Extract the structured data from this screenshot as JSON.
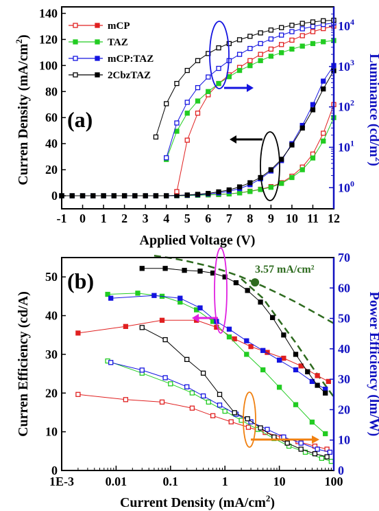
{
  "colors": {
    "mCP": "#e02020",
    "TAZ": "#22cc22",
    "mCP:TAZ": "#1414e0",
    "2CbzTAZ": "#000000",
    "right_axis": "#1010c0",
    "fit": "#2e6b1f",
    "magenta": "#e020e0",
    "orange": "#f08010"
  },
  "chart_data": [
    {
      "panel": "(a)",
      "type": "line",
      "xlabel": "Applied Voltage (V)",
      "ylabel": "Curren Density (mA/cm",
      "ylabel_sup": "2",
      "ylabel_end": ")",
      "y2label": "Luminance (cd/m",
      "y2label_sup": "2",
      "y2label_end": ")",
      "xlim": [
        -1,
        12
      ],
      "ylim": [
        -10,
        145
      ],
      "y2lim_log": [
        0.3,
        30000
      ],
      "y2scale": "log",
      "xticks": [
        "-1",
        "0",
        "1",
        "2",
        "3",
        "4",
        "5",
        "6",
        "7",
        "8",
        "9",
        "10",
        "11",
        "12"
      ],
      "yticks": [
        "0",
        "20",
        "40",
        "60",
        "80",
        "100",
        "120",
        "140"
      ],
      "y2ticks": [
        {
          "base": "10",
          "exp": "0",
          "v": 1
        },
        {
          "base": "10",
          "exp": "1",
          "v": 10
        },
        {
          "base": "10",
          "exp": "2",
          "v": 100
        },
        {
          "base": "10",
          "exp": "3",
          "v": 1000
        },
        {
          "base": "10",
          "exp": "4",
          "v": 10000
        }
      ],
      "legend": [
        "mCP",
        "TAZ",
        "mCP:TAZ",
        "2CbzTAZ"
      ],
      "current_density": [
        {
          "name": "mCP",
          "x": [
            -1,
            -0.5,
            0,
            0.5,
            1,
            1.5,
            2,
            2.5,
            3,
            3.5,
            4,
            4.5,
            5,
            5.5,
            6,
            6.5,
            7,
            7.5,
            8,
            8.5,
            9,
            9.5,
            10,
            10.5,
            11,
            11.5,
            12
          ],
          "y": [
            0,
            0,
            0,
            0,
            0,
            0,
            0,
            0,
            0,
            0,
            0,
            0,
            0.2,
            0.4,
            0.7,
            1,
            1.5,
            2.3,
            3.5,
            5,
            7,
            10,
            15,
            22,
            32,
            48,
            70
          ]
        },
        {
          "name": "TAZ",
          "x": [
            -1,
            -0.5,
            0,
            0.5,
            1,
            1.5,
            2,
            2.5,
            3,
            3.5,
            4,
            4.5,
            5,
            5.5,
            6,
            6.5,
            7,
            7.5,
            8,
            8.5,
            9,
            9.5,
            10,
            10.5,
            11,
            11.5,
            12
          ],
          "y": [
            0,
            0,
            0,
            0,
            0,
            0,
            0,
            0,
            0,
            0,
            0,
            0,
            0.2,
            0.4,
            0.7,
            1,
            1.4,
            2.2,
            3.3,
            4.8,
            6.5,
            9.5,
            14,
            20,
            29,
            42,
            60
          ]
        },
        {
          "name": "mCP:TAZ",
          "x": [
            -1,
            -0.5,
            0,
            0.5,
            1,
            1.5,
            2,
            2.5,
            3,
            3.5,
            4,
            4.5,
            5,
            5.5,
            6,
            6.5,
            7,
            7.5,
            8,
            8.5,
            9,
            9.5,
            10,
            10.5,
            11,
            11.5,
            12
          ],
          "y": [
            0,
            0,
            0,
            0,
            0,
            0,
            0,
            0,
            0,
            0,
            0,
            0.2,
            0.4,
            0.8,
            1.4,
            2.2,
            3.5,
            5.5,
            8.5,
            13,
            19,
            27,
            40,
            54,
            70,
            88,
            100
          ]
        },
        {
          "name": "2CbzTAZ",
          "x": [
            -1,
            -0.5,
            0,
            0.5,
            1,
            1.5,
            2,
            2.5,
            3,
            3.5,
            4,
            4.5,
            5,
            5.5,
            6,
            6.5,
            7,
            7.5,
            8,
            8.5,
            9,
            9.5,
            10,
            10.5,
            11,
            11.5,
            12
          ],
          "y": [
            0,
            0,
            0,
            0,
            0,
            0,
            0,
            0,
            0,
            0,
            0,
            0.3,
            0.6,
            1.1,
            1.8,
            3,
            4.5,
            6.8,
            10,
            14,
            20,
            28,
            39,
            52,
            66,
            82,
            96
          ]
        }
      ],
      "luminance": [
        {
          "name": "mCP",
          "x": [
            4.5,
            5,
            5.5,
            6,
            6.5,
            7,
            7.5,
            8,
            8.5,
            9,
            9.5,
            10,
            10.5,
            11,
            11.5,
            12
          ],
          "y": [
            0.8,
            15,
            70,
            200,
            380,
            620,
            950,
            1400,
            2000,
            2700,
            3500,
            4500,
            5800,
            7300,
            8700,
            10000
          ]
        },
        {
          "name": "TAZ",
          "x": [
            4,
            4.5,
            5,
            5.5,
            6,
            6.5,
            7,
            7.5,
            8,
            8.5,
            9,
            9.5,
            10,
            10.5,
            11,
            11.5,
            12
          ],
          "y": [
            5,
            25,
            70,
            140,
            240,
            380,
            560,
            800,
            1050,
            1400,
            1800,
            2200,
            2700,
            3200,
            3700,
            4100,
            4400
          ]
        },
        {
          "name": "mCP:TAZ",
          "x": [
            4,
            4.5,
            5,
            5.5,
            6,
            6.5,
            7,
            7.5,
            8,
            8.5,
            9,
            9.5,
            10,
            10.5,
            11,
            11.5,
            12
          ],
          "y": [
            5.5,
            40,
            130,
            300,
            550,
            900,
            1400,
            2000,
            2800,
            3700,
            4800,
            6000,
            7300,
            8600,
            9800,
            11000,
            12000
          ]
        },
        {
          "name": "2CbzTAZ",
          "x": [
            3.5,
            4,
            4.5,
            5,
            5.5,
            6,
            6.5,
            7,
            7.5,
            8,
            8.5,
            9,
            9.5,
            10,
            10.5,
            11,
            11.5,
            12
          ],
          "y": [
            18,
            120,
            380,
            800,
            1400,
            2100,
            2900,
            3700,
            4600,
            5600,
            6800,
            8000,
            9200,
            10500,
            11700,
            12700,
            13600,
            14000
          ]
        }
      ]
    },
    {
      "panel": "(b)",
      "type": "line",
      "xlabel": "Current Density (mA/cm",
      "xlabel_sup": "2",
      "xlabel_end": ")",
      "ylabel": "Curren Efficiency (cd/A)",
      "y2label": "Power Efficiency (lm/W)",
      "xscale": "log",
      "xlim_log": [
        0.001,
        100
      ],
      "ylim": [
        0,
        55
      ],
      "y2lim": [
        0,
        70
      ],
      "xticks": [
        {
          "label": "1E-3",
          "v": 0.001
        },
        {
          "label": "0.01",
          "v": 0.01
        },
        {
          "label": "0.1",
          "v": 0.1
        },
        {
          "label": "1",
          "v": 1
        },
        {
          "label": "10",
          "v": 10
        },
        {
          "label": "100",
          "v": 100
        }
      ],
      "yticks": [
        "0",
        "10",
        "20",
        "30",
        "40",
        "50"
      ],
      "y2ticks": [
        "0",
        "10",
        "20",
        "30",
        "40",
        "50",
        "60",
        "70"
      ],
      "annotation": "3.57 mA/cm²",
      "annotation_x": 3.57,
      "current_efficiency": [
        {
          "name": "mCP",
          "x": [
            0.002,
            0.015,
            0.07,
            0.3,
            0.7,
            1.5,
            3,
            6,
            12,
            25,
            50,
            80
          ],
          "y": [
            35.5,
            37.2,
            38.8,
            38.8,
            37,
            34,
            32,
            30.5,
            29,
            27,
            24.5,
            23
          ]
        },
        {
          "name": "TAZ",
          "x": [
            0.007,
            0.025,
            0.07,
            0.15,
            0.3,
            0.6,
            1.2,
            2.5,
            5,
            10,
            20,
            40,
            70
          ],
          "y": [
            45.5,
            45.8,
            45,
            43.5,
            41.5,
            38.5,
            34.5,
            30,
            26,
            21.5,
            17,
            12.5,
            9.5
          ]
        },
        {
          "name": "mCP:TAZ",
          "x": [
            0.008,
            0.05,
            0.15,
            0.35,
            0.7,
            1.2,
            2.5,
            5,
            10,
            20,
            40,
            70
          ],
          "y": [
            44.5,
            45.2,
            44.5,
            42,
            38.5,
            36.5,
            33.5,
            31,
            28.5,
            26,
            23,
            21
          ]
        },
        {
          "name": "2CbzTAZ",
          "x": [
            0.03,
            0.08,
            0.18,
            0.35,
            0.6,
            1,
            1.6,
            2.6,
            4.5,
            7.5,
            12,
            20,
            33,
            50,
            70
          ],
          "y": [
            52.2,
            52.2,
            51.7,
            51.5,
            51,
            50,
            48.5,
            46.5,
            43.5,
            39.5,
            35,
            30,
            25.5,
            22,
            20
          ]
        }
      ],
      "power_efficiency": [
        {
          "name": "mCP",
          "x": [
            0.002,
            0.015,
            0.07,
            0.25,
            0.6,
            1.3,
            2.7,
            5.5,
            11,
            22,
            45,
            75
          ],
          "y": [
            25,
            23.3,
            22.5,
            20.5,
            18,
            16,
            14.2,
            12.5,
            11,
            9.5,
            8,
            7
          ]
        },
        {
          "name": "TAZ",
          "x": [
            0.007,
            0.03,
            0.1,
            0.25,
            0.5,
            1,
            2,
            4,
            8,
            15,
            30,
            60,
            90
          ],
          "y": [
            36,
            32,
            28.5,
            25.5,
            22.5,
            19.5,
            16.5,
            13.5,
            10.5,
            8,
            6,
            4,
            3
          ]
        },
        {
          "name": "mCP:TAZ",
          "x": [
            0.008,
            0.03,
            0.08,
            0.2,
            0.4,
            0.8,
            1.6,
            3,
            6,
            12,
            25,
            50,
            85
          ],
          "y": [
            35.5,
            33,
            30.5,
            27.5,
            24.5,
            21.5,
            18.5,
            16,
            13.5,
            11,
            9,
            7,
            6
          ]
        },
        {
          "name": "2CbzTAZ",
          "x": [
            0.03,
            0.08,
            0.2,
            0.4,
            0.8,
            1.5,
            2.6,
            4.5,
            8,
            14,
            25,
            45,
            75
          ],
          "y": [
            47,
            43,
            36.5,
            32,
            25,
            19,
            17,
            14,
            11,
            9,
            7,
            5.5,
            4.5
          ]
        }
      ],
      "fit_lines": [
        {
          "x": [
            0.05,
            0.1,
            0.2,
            0.5,
            1,
            2,
            5,
            10,
            20,
            50,
            100
          ],
          "y": [
            55.5,
            54.9,
            54.1,
            52.8,
            51.5,
            50,
            47.6,
            45.6,
            43.5,
            40.4,
            38
          ]
        },
        {
          "x": [
            2,
            5,
            10,
            20,
            50,
            100
          ],
          "y": [
            49.5,
            44.5,
            38.7,
            33,
            24.8,
            19
          ]
        }
      ]
    }
  ]
}
